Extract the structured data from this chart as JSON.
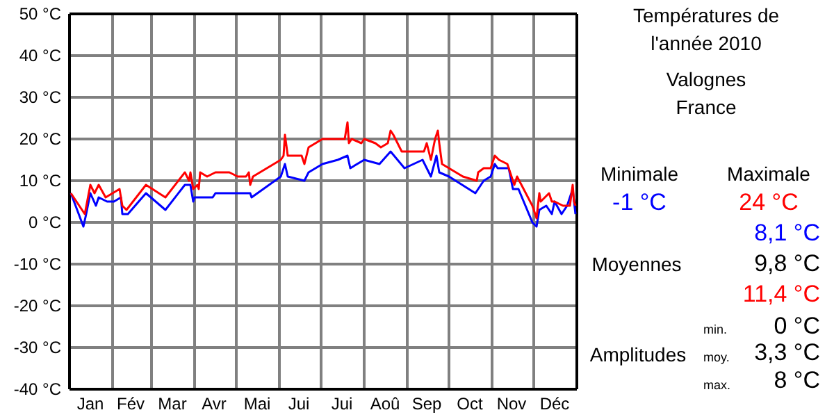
{
  "chart_data": {
    "type": "line",
    "title": "Températures de l'année 2010",
    "subtitle": "Valognes\nFrance",
    "xlim": [
      "2010-01-01",
      "2011-01-01"
    ],
    "xticks": [
      {
        "value": "2010-01-16",
        "label": "Jan"
      },
      {
        "value": "2010-02-01",
        "label": null
      },
      {
        "value": "2010-02-14",
        "label": "Fév"
      },
      {
        "value": "2010-03-01",
        "label": null
      },
      {
        "value": "2010-03-16",
        "label": "Mar"
      },
      {
        "value": "2010-04-01",
        "label": null
      },
      {
        "value": "2010-04-15",
        "label": "Avr"
      },
      {
        "value": "2010-05-01",
        "label": null
      },
      {
        "value": "2010-05-16",
        "label": "Mai"
      },
      {
        "value": "2010-06-01",
        "label": null
      },
      {
        "value": "2010-06-15",
        "label": "Jui"
      },
      {
        "value": "2010-07-01",
        "label": null
      },
      {
        "value": "2010-07-16",
        "label": "Jui"
      },
      {
        "value": "2010-08-01",
        "label": null
      },
      {
        "value": "2010-08-16",
        "label": "Aoû"
      },
      {
        "value": "2010-09-01",
        "label": null
      },
      {
        "value": "2010-09-15",
        "label": "Sep"
      },
      {
        "value": "2010-10-01",
        "label": null
      },
      {
        "value": "2010-10-16",
        "label": "Oct"
      },
      {
        "value": "2010-11-01",
        "label": null
      },
      {
        "value": "2010-11-15",
        "label": "Nov"
      },
      {
        "value": "2010-12-01",
        "label": null
      },
      {
        "value": "2010-12-16",
        "label": "Déc"
      }
    ],
    "ylim": [
      -40,
      50
    ],
    "yticks": [
      {
        "value": -40,
        "label": "-40 °C"
      },
      {
        "value": -30,
        "label": "-30 °C"
      },
      {
        "value": -20,
        "label": "-20 °C"
      },
      {
        "value": -10,
        "label": "-10 °C"
      },
      {
        "value": 0,
        "label": "0 °C"
      },
      {
        "value": 10,
        "label": "10 °C"
      },
      {
        "value": 20,
        "label": "20 °C"
      },
      {
        "value": 30,
        "label": "30 °C"
      },
      {
        "value": 40,
        "label": "40 °C"
      },
      {
        "value": 50,
        "label": "50 °C"
      }
    ],
    "grid": true,
    "marker": "none",
    "line_style": "solid",
    "series": [
      {
        "color": "#0000ff",
        "x": [
          "2010-01-02",
          "2010-01-11",
          "2010-01-13",
          "2010-01-16",
          "2010-01-20",
          "2010-01-22",
          "2010-01-28",
          "2010-02-02",
          "2010-02-07",
          "2010-02-08",
          "2010-02-12",
          "2010-02-25",
          "2010-03-11",
          "2010-03-25",
          "2010-03-29",
          "2010-03-31",
          "2010-04-01",
          "2010-04-14",
          "2010-04-16",
          "2010-05-11",
          "2010-05-12",
          "2010-06-02",
          "2010-06-05",
          "2010-06-07",
          "2010-06-19",
          "2010-06-22",
          "2010-07-02",
          "2010-07-13",
          "2010-07-20",
          "2010-07-22",
          "2010-08-01",
          "2010-08-12",
          "2010-08-20",
          "2010-08-30",
          "2010-09-12",
          "2010-09-18",
          "2010-09-22",
          "2010-09-24",
          "2010-10-01",
          "2010-10-20",
          "2010-10-26",
          "2010-10-31",
          "2010-11-03",
          "2010-11-05",
          "2010-11-13",
          "2010-11-16",
          "2010-11-20",
          "2010-11-30",
          "2010-12-03",
          "2010-12-05",
          "2010-12-10",
          "2010-12-14",
          "2010-12-16",
          "2010-12-21",
          "2010-12-25",
          "2010-12-29",
          "2010-12-31"
        ],
        "values": [
          7,
          -1,
          2,
          7,
          4,
          6,
          5,
          5,
          6,
          2,
          2,
          7,
          3,
          9,
          9,
          5,
          6,
          6,
          7,
          7,
          6,
          11,
          14,
          11,
          10,
          12,
          14,
          15,
          16,
          13,
          15,
          14,
          17,
          13,
          15,
          11,
          16,
          12,
          11,
          7,
          10,
          11,
          14,
          13,
          13,
          8,
          8,
          0,
          -1,
          3,
          4,
          2,
          5,
          2,
          4,
          8,
          2
        ]
      },
      {
        "color": "#ff0000",
        "x": [
          "2010-01-02",
          "2010-01-12",
          "2010-01-16",
          "2010-01-19",
          "2010-01-22",
          "2010-01-27",
          "2010-02-06",
          "2010-02-08",
          "2010-02-11",
          "2010-02-25",
          "2010-03-11",
          "2010-03-25",
          "2010-03-28",
          "2010-03-29",
          "2010-03-31",
          "2010-04-03",
          "2010-04-04",
          "2010-04-05",
          "2010-04-10",
          "2010-04-16",
          "2010-04-26",
          "2010-05-02",
          "2010-05-08",
          "2010-05-10",
          "2010-05-11",
          "2010-05-13",
          "2010-06-02",
          "2010-06-04",
          "2010-06-05",
          "2010-06-07",
          "2010-06-17",
          "2010-06-19",
          "2010-06-22",
          "2010-06-27",
          "2010-07-02",
          "2010-07-18",
          "2010-07-20",
          "2010-07-21",
          "2010-07-23",
          "2010-07-30",
          "2010-08-01",
          "2010-08-09",
          "2010-08-13",
          "2010-08-18",
          "2010-08-20",
          "2010-08-22",
          "2010-08-28",
          "2010-09-13",
          "2010-09-15",
          "2010-09-18",
          "2010-09-21",
          "2010-09-23",
          "2010-09-24",
          "2010-09-26",
          "2010-10-11",
          "2010-10-21",
          "2010-10-22",
          "2010-10-26",
          "2010-10-31",
          "2010-11-03",
          "2010-11-06",
          "2010-11-12",
          "2010-11-15",
          "2010-11-17",
          "2010-11-19",
          "2010-11-30",
          "2010-12-03",
          "2010-12-05",
          "2010-12-06",
          "2010-12-12",
          "2010-12-14",
          "2010-12-16",
          "2010-12-22",
          "2010-12-27",
          "2010-12-29",
          "2010-12-30",
          "2010-12-31"
        ],
        "values": [
          7,
          2,
          9,
          7,
          9,
          6,
          8,
          4,
          3,
          9,
          6,
          12,
          10,
          12,
          8,
          9,
          8,
          12,
          11,
          12,
          12,
          11,
          11,
          12,
          9,
          11,
          15,
          16,
          21,
          16,
          16,
          14,
          18,
          19,
          20,
          20,
          24,
          19,
          20,
          19,
          20,
          19,
          18,
          19,
          22,
          21,
          17,
          17,
          19,
          15,
          20,
          22,
          19,
          14,
          11,
          10,
          12,
          13,
          13,
          16,
          15,
          14,
          11,
          9,
          11,
          4,
          1,
          7,
          5,
          7,
          5,
          5,
          4,
          4,
          9,
          5,
          4
        ]
      }
    ],
    "annotations": [
      "Minimale",
      "Maximale",
      "-1 °C",
      "24 °C",
      "8,1 °C",
      "Moyennes",
      "9,8 °C",
      "11,4 °C",
      "Amplitudes",
      "min.",
      "0 °C",
      "moy.",
      "3,3 °C",
      "max.",
      "8 °C"
    ]
  }
}
